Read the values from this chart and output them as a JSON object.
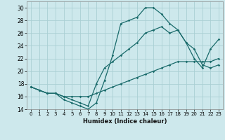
{
  "title": "",
  "xlabel": "Humidex (Indice chaleur)",
  "background_color": "#cde8ec",
  "grid_color": "#aacfd4",
  "line_color": "#1a6b6b",
  "x": [
    0,
    1,
    2,
    3,
    4,
    5,
    6,
    7,
    8,
    9,
    10,
    11,
    12,
    13,
    14,
    15,
    16,
    17,
    18,
    19,
    20,
    21,
    22,
    23
  ],
  "line1": [
    17.5,
    17.0,
    16.5,
    16.5,
    15.5,
    15.0,
    14.5,
    14.0,
    15.0,
    18.5,
    22.5,
    27.5,
    28.0,
    28.5,
    30.0,
    30.0,
    29.0,
    27.5,
    26.5,
    24.5,
    23.5,
    21.0,
    20.5,
    21.0
  ],
  "line2": [
    17.5,
    17.0,
    16.5,
    16.5,
    16.0,
    16.0,
    16.0,
    16.0,
    16.5,
    17.0,
    17.5,
    18.0,
    18.5,
    19.0,
    19.5,
    20.0,
    20.5,
    21.0,
    21.5,
    21.5,
    21.5,
    21.5,
    21.5,
    22.0
  ],
  "line3": [
    17.5,
    17.0,
    16.5,
    16.5,
    16.0,
    15.5,
    15.0,
    14.5,
    18.0,
    20.5,
    21.5,
    22.5,
    23.5,
    24.5,
    26.0,
    26.5,
    27.0,
    26.0,
    26.5,
    24.5,
    22.0,
    20.5,
    23.5,
    25.0
  ],
  "ylim": [
    14,
    31
  ],
  "xlim": [
    -0.5,
    23.5
  ],
  "yticks": [
    14,
    16,
    18,
    20,
    22,
    24,
    26,
    28,
    30
  ],
  "xticks": [
    0,
    1,
    2,
    3,
    4,
    5,
    6,
    7,
    8,
    9,
    10,
    11,
    12,
    13,
    14,
    15,
    16,
    17,
    18,
    19,
    20,
    21,
    22,
    23
  ]
}
